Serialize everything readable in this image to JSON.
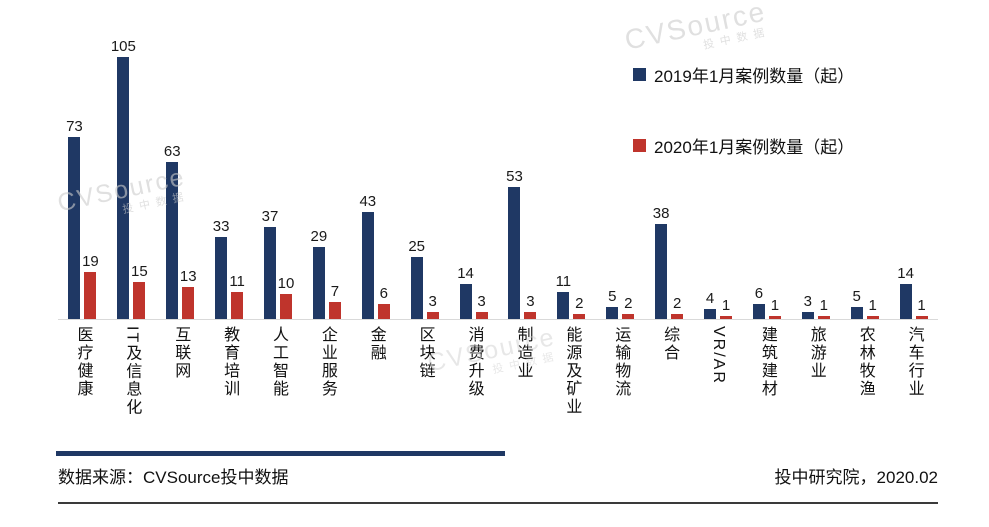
{
  "chart_data": {
    "type": "bar",
    "title": "",
    "categories": [
      "医疗健康",
      "IT及信息化",
      "互联网",
      "教育培训",
      "人工智能",
      "企业服务",
      "金融",
      "区块链",
      "消费升级",
      "制造业",
      "能源及矿业",
      "运输物流",
      "综合",
      "VR/AR",
      "建筑建材",
      "旅游业",
      "农林牧渔",
      "汽车行业"
    ],
    "series": [
      {
        "name": "2019年1月案例数量（起）",
        "color": "#1f3864",
        "values": [
          73,
          105,
          63,
          33,
          37,
          29,
          43,
          25,
          14,
          53,
          11,
          5,
          38,
          4,
          6,
          3,
          5,
          14
        ]
      },
      {
        "name": "2020年1月案例数量（起）",
        "color": "#bf342c",
        "values": [
          19,
          15,
          13,
          11,
          10,
          7,
          6,
          3,
          3,
          3,
          2,
          2,
          2,
          1,
          1,
          1,
          1,
          1
        ]
      }
    ],
    "ylim": [
      0,
      110
    ],
    "grid": false,
    "legend_position": "top-right"
  },
  "watermark": {
    "brand": "CVSource",
    "sub": "投中数据"
  },
  "footer": {
    "source": "数据来源：CVSource投中数据",
    "credit": "投中研究院，2020.02"
  }
}
